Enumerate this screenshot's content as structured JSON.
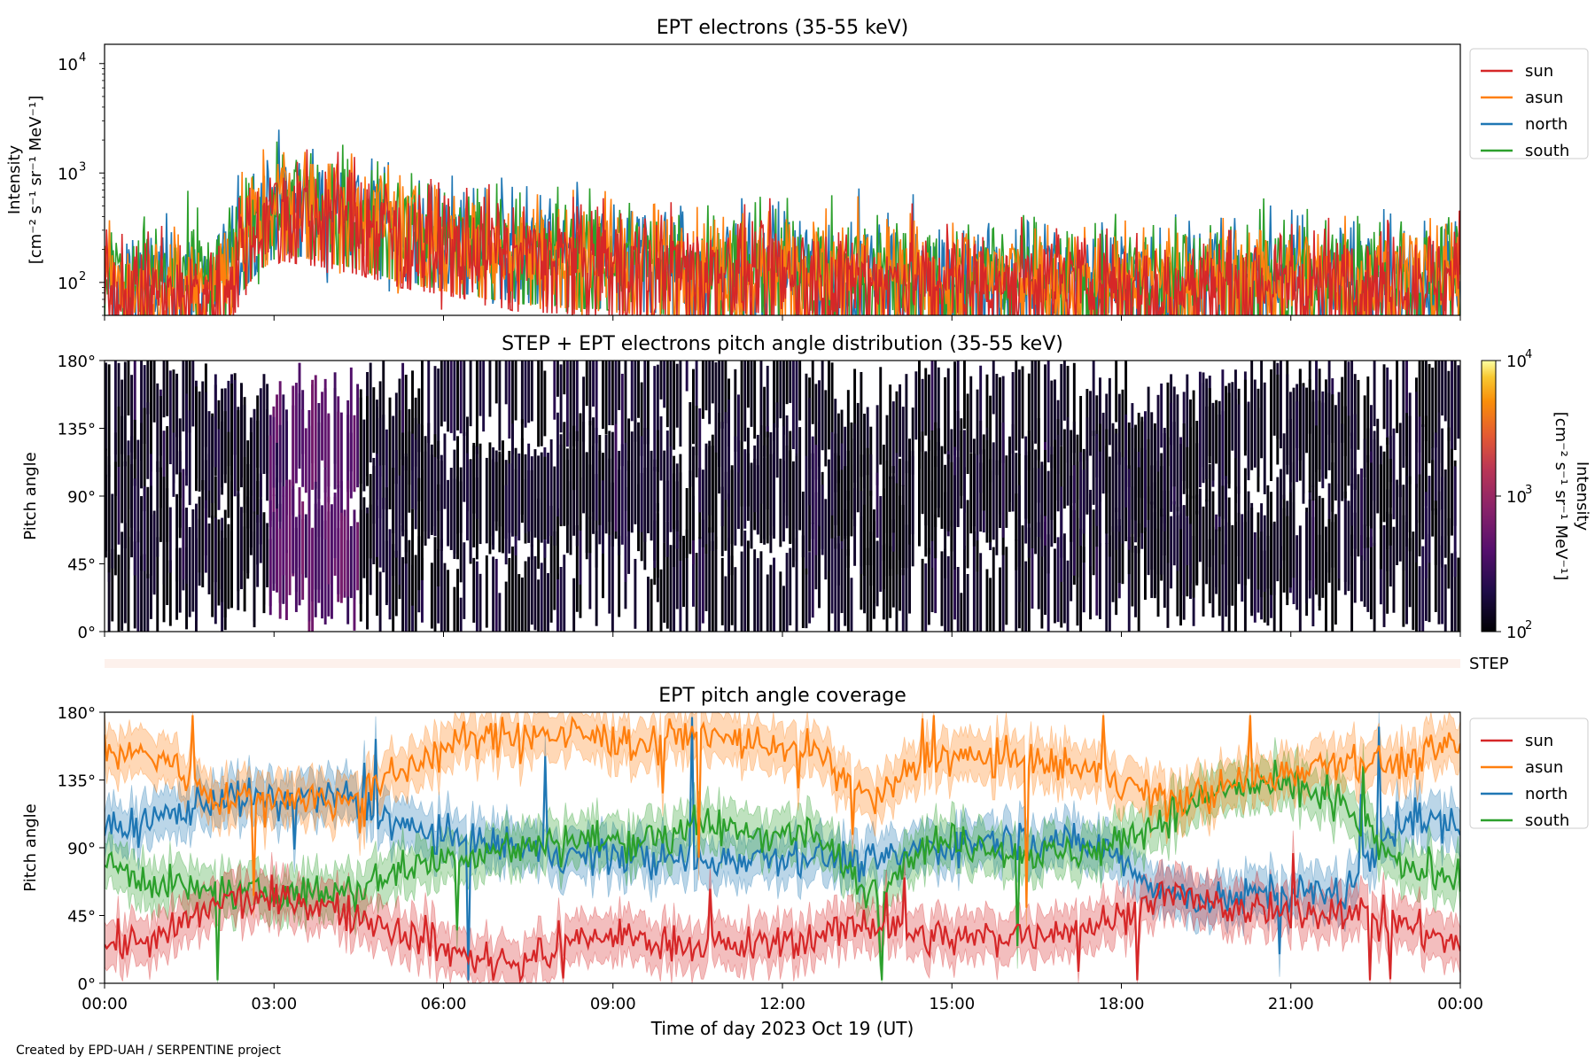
{
  "footer": {
    "credit": "Created by EPD-UAH / SERPENTINE project"
  },
  "colors": {
    "sun": "#d62728",
    "asun": "#ff7f0e",
    "north": "#1f77b4",
    "south": "#2ca02c"
  },
  "chart_data": [
    {
      "type": "line",
      "title": "EPT electrons (35-55 keV)",
      "ylabel": "Intensity",
      "yunit": "[cm⁻² s⁻¹ sr⁻¹ MeV⁻¹]",
      "yscale": "log",
      "ylim": [
        50,
        15000
      ],
      "ytick_base": "10",
      "yticks": [
        {
          "value": 100,
          "exp": "2"
        },
        {
          "value": 1000,
          "exp": "3"
        },
        {
          "value": 10000,
          "exp": "4"
        }
      ],
      "xlim_hours": [
        0,
        24
      ],
      "legend_position": "outside-right-top",
      "series": [
        {
          "name": "sun",
          "color": "#d62728",
          "values_hourly": [
            90,
            85,
            80,
            520,
            430,
            300,
            240,
            180,
            170,
            160,
            140,
            130,
            120,
            115,
            110,
            105,
            110,
            105,
            100,
            100,
            105,
            110,
            110,
            115
          ]
        },
        {
          "name": "asun",
          "color": "#ff7f0e",
          "values_hourly": [
            110,
            105,
            100,
            600,
            480,
            330,
            260,
            210,
            190,
            170,
            155,
            145,
            135,
            125,
            120,
            120,
            120,
            115,
            115,
            115,
            120,
            125,
            125,
            130
          ]
        },
        {
          "name": "north",
          "color": "#1f77b4",
          "values_hourly": [
            120,
            115,
            110,
            620,
            500,
            350,
            270,
            220,
            200,
            180,
            165,
            150,
            140,
            130,
            125,
            125,
            125,
            120,
            120,
            120,
            125,
            125,
            130,
            130
          ]
        },
        {
          "name": "south",
          "color": "#2ca02c",
          "values_hourly": [
            125,
            120,
            115,
            600,
            480,
            340,
            265,
            215,
            195,
            180,
            160,
            150,
            140,
            130,
            125,
            125,
            125,
            120,
            120,
            120,
            125,
            130,
            130,
            135
          ]
        }
      ]
    },
    {
      "type": "heatmap",
      "title": "STEP + EPT electrons pitch angle distribution (35-55 keV)",
      "ylabel": "Pitch angle",
      "yticks": [
        "0°",
        "45°",
        "90°",
        "135°",
        "180°"
      ],
      "ylim_deg": [
        0,
        180
      ],
      "colorbar": {
        "label": "Intensity",
        "unit": "[cm⁻² s⁻¹ sr⁻¹ MeV⁻¹]",
        "scale": "log",
        "range": [
          100,
          10000
        ],
        "ticks": [
          {
            "value": 100,
            "exp": "2"
          },
          {
            "value": 1000,
            "exp": "3"
          },
          {
            "value": 10000,
            "exp": "4"
          }
        ],
        "colormap": "inferno"
      },
      "peak_interval_hours": [
        2.9,
        4.5
      ],
      "peak_intensity": 400,
      "background_intensity": 130
    },
    {
      "type": "strip",
      "label": "STEP"
    },
    {
      "type": "line",
      "title": "EPT pitch angle coverage",
      "ylabel": "Pitch angle",
      "xlabel": "Time of day 2023 Oct 19 (UT)",
      "xlim_hours": [
        0,
        24
      ],
      "xticks": [
        "00:00",
        "03:00",
        "06:00",
        "09:00",
        "12:00",
        "15:00",
        "18:00",
        "21:00",
        "00:00"
      ],
      "ylim_deg": [
        0,
        180
      ],
      "yticks": [
        "0°",
        "45°",
        "90°",
        "135°",
        "180°"
      ],
      "band_halfwidth_deg": 15,
      "legend_position": "outside-right-top",
      "series": [
        {
          "name": "sun",
          "color": "#d62728",
          "values_hourly": [
            25,
            30,
            55,
            55,
            50,
            35,
            20,
            12,
            30,
            30,
            25,
            25,
            30,
            40,
            30,
            30,
            35,
            40,
            60,
            50,
            45,
            50,
            40,
            25
          ]
        },
        {
          "name": "asun",
          "color": "#ff7f0e",
          "values_hourly": [
            155,
            150,
            120,
            125,
            120,
            140,
            160,
            165,
            165,
            160,
            165,
            160,
            155,
            120,
            150,
            150,
            145,
            140,
            120,
            130,
            140,
            150,
            145,
            160
          ]
        },
        {
          "name": "north",
          "color": "#1f77b4",
          "values_hourly": [
            100,
            110,
            125,
            120,
            125,
            105,
            95,
            90,
            85,
            85,
            80,
            85,
            85,
            80,
            90,
            95,
            95,
            90,
            60,
            55,
            60,
            60,
            110,
            105
          ]
        },
        {
          "name": "south",
          "color": "#2ca02c",
          "values_hourly": [
            80,
            65,
            60,
            60,
            60,
            75,
            85,
            90,
            95,
            95,
            105,
            100,
            100,
            60,
            95,
            90,
            85,
            90,
            110,
            130,
            130,
            120,
            75,
            75
          ]
        }
      ]
    }
  ]
}
